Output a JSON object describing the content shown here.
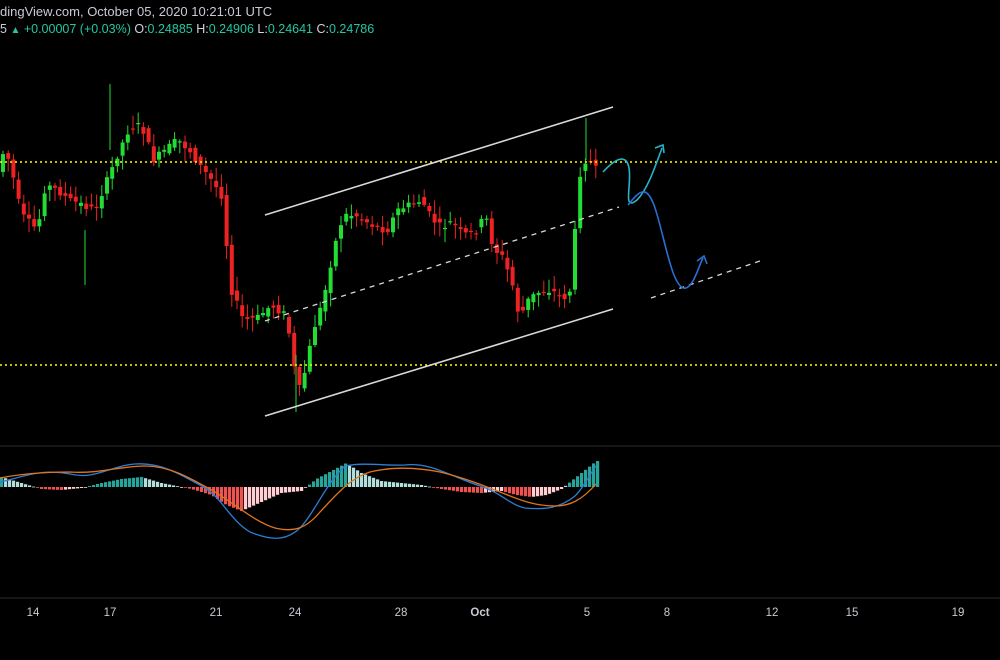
{
  "header": {
    "title_text": "dingView.com, October 05, 2020 10:21:01 UTC",
    "trunc_prefix": "5",
    "up_arrow": "▲",
    "change": "+0.00007 (+0.03%)",
    "o_label": "O:",
    "o_value": "0.24885",
    "h_label": "H:",
    "h_value": "0.24906",
    "l_label": "L:",
    "l_value": "0.24641",
    "c_label": "C:",
    "c_value": "0.24786"
  },
  "colors": {
    "background": "#000000",
    "bull": "#22dd33",
    "bear": "#ee2222",
    "macd": "#2b7fd6",
    "signal": "#e2741d",
    "hist_up_strong": "#26a69a",
    "hist_up_weak": "#b2dfdb",
    "hist_down_strong": "#ef5350",
    "hist_down_weak": "#ffcdd2",
    "level_line": "#ffff00",
    "channel": "#d9d9d9",
    "projection_teal": "#27b4c8",
    "projection_blue": "#2a6fd0"
  },
  "chart_data": {
    "type": "candlestick",
    "x_axis": {
      "tick_labels": [
        "14",
        "17",
        "21",
        "24",
        "28",
        "Oct",
        "5",
        "8",
        "12",
        "15",
        "19"
      ],
      "tick_dates": [
        "Sep 14",
        "Sep 17",
        "Sep 21",
        "Sep 24",
        "Sep 28",
        "Oct 1",
        "Oct 5",
        "Oct 8",
        "Oct 12",
        "Oct 15",
        "Oct 19"
      ],
      "range": [
        "Sep 13",
        "Oct 20"
      ]
    },
    "y_axis": {
      "range": [
        0.175,
        0.265
      ],
      "labels": []
    },
    "last_candle": {
      "date": "Oct 5",
      "open": 0.24885,
      "high": 0.24906,
      "low": 0.24641,
      "close": 0.24786,
      "change": 7e-05,
      "change_pct": 0.03
    },
    "horizontal_levels": [
      0.248,
      0.1995
    ],
    "annotations": [
      "ascending channel upper line",
      "ascending channel mid line (dashed)",
      "ascending channel lower line",
      "projected price path arrows"
    ],
    "indicator": {
      "name": "MACD",
      "series": [
        "MACD line",
        "Signal line",
        "Histogram"
      ]
    },
    "grid": false,
    "legend": "none"
  }
}
